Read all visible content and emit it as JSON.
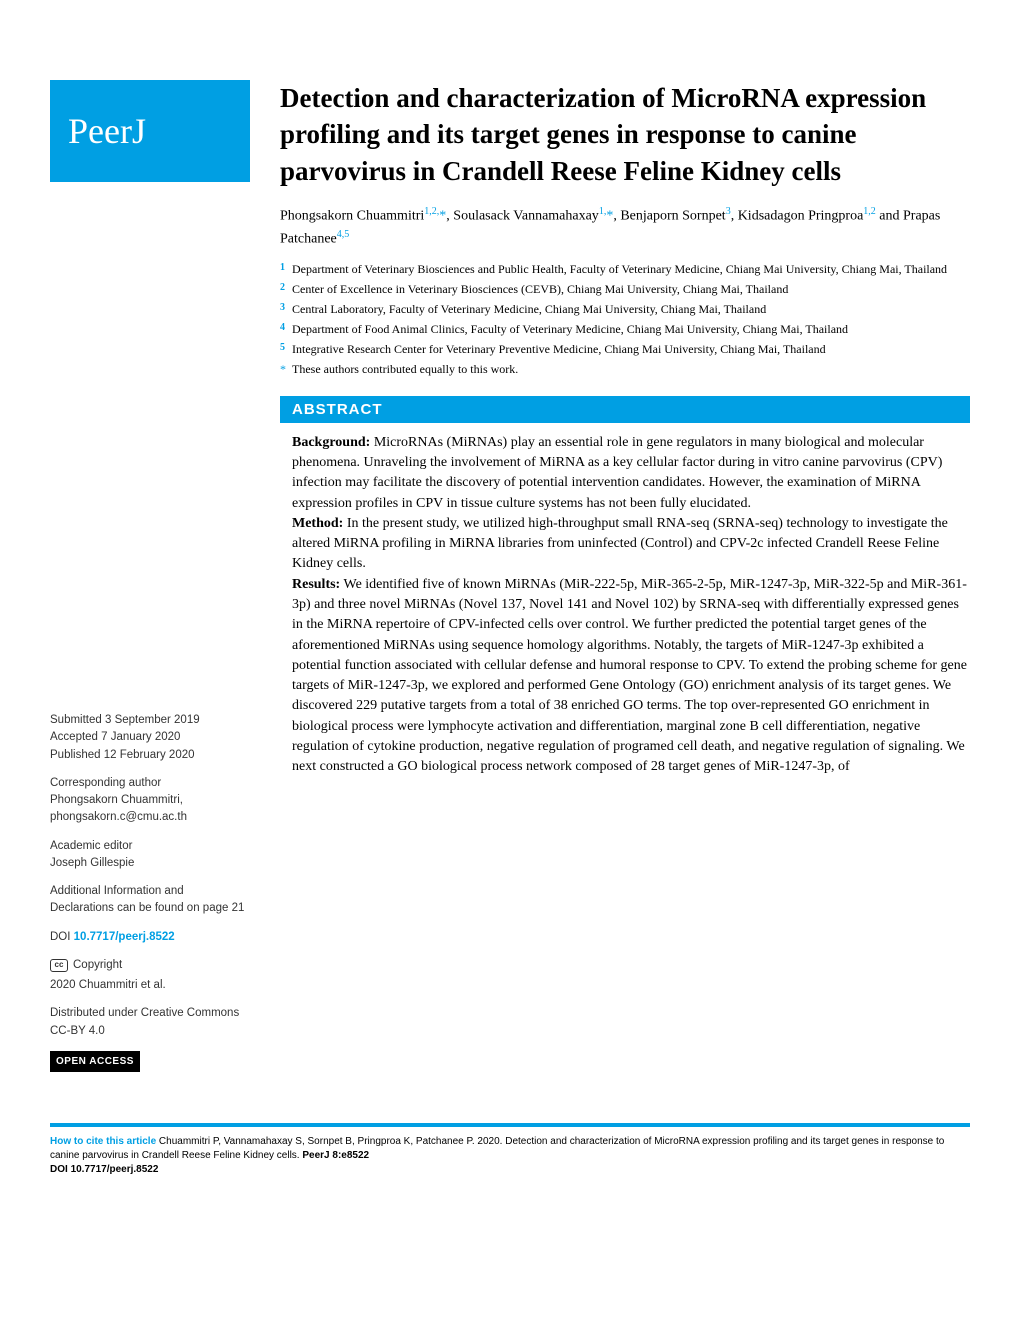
{
  "logo": "PeerJ",
  "title": "Detection and characterization of MicroRNA expression profiling and its target genes in response to canine parvovirus in Crandell Reese Feline Kidney cells",
  "authors_html": "Phongsakorn Chuammitri<sup>1,2,</sup>*, Soulasack Vannamahaxay<sup>1,</sup>*, Benjaporn Sornpet<sup>3</sup>, Kidsadagon Pringproa<sup>1,2</sup> and Prapas Patchanee<sup>4,5</sup>",
  "authors": [
    {
      "name": "Phongsakorn Chuammitri",
      "sup": "1,2,",
      "ast": true
    },
    {
      "name": ", Soulasack Vannamahaxay",
      "sup": "1,",
      "ast": true
    },
    {
      "name": ", Benjaporn Sornpet",
      "sup": "3",
      "ast": false
    },
    {
      "name": ", Kidsadagon Pringproa",
      "sup": "1,2",
      "ast": false
    },
    {
      "name": " and Prapas Patchanee",
      "sup": "4,5",
      "ast": false
    }
  ],
  "affiliations": [
    {
      "num": "1",
      "text": "Department of Veterinary Biosciences and Public Health, Faculty of Veterinary Medicine, Chiang Mai University, Chiang Mai, Thailand"
    },
    {
      "num": "2",
      "text": "Center of Excellence in Veterinary Biosciences (CEVB), Chiang Mai University, Chiang Mai, Thailand"
    },
    {
      "num": "3",
      "text": "Central Laboratory, Faculty of Veterinary Medicine, Chiang Mai University, Chiang Mai, Thailand"
    },
    {
      "num": "4",
      "text": "Department of Food Animal Clinics, Faculty of Veterinary Medicine, Chiang Mai University, Chiang Mai, Thailand"
    },
    {
      "num": "5",
      "text": "Integrative Research Center for Veterinary Preventive Medicine, Chiang Mai University, Chiang Mai, Thailand"
    }
  ],
  "equal_contrib": "These authors contributed equally to this work.",
  "abstract_header": "ABSTRACT",
  "abstract": {
    "background_label": "Background:",
    "background": " MicroRNAs (MiRNAs) play an essential role in gene regulators in many biological and molecular phenomena. Unraveling the involvement of MiRNA as a key cellular factor during in vitro canine parvovirus (CPV) infection may facilitate the discovery of potential intervention candidates. However, the examination of MiRNA expression profiles in CPV in tissue culture systems has not been fully elucidated.",
    "method_label": "Method:",
    "method": " In the present study, we utilized high-throughput small RNA-seq (SRNA-seq) technology to investigate the altered MiRNA profiling in MiRNA libraries from uninfected (Control) and CPV-2c infected Crandell Reese Feline Kidney cells.",
    "results_label": "Results:",
    "results": " We identified five of known MiRNAs (MiR-222-5p, MiR-365-2-5p, MiR-1247-3p, MiR-322-5p and MiR-361-3p) and three novel MiRNAs (Novel 137, Novel 141 and Novel 102) by SRNA-seq with differentially expressed genes in the MiRNA repertoire of CPV-infected cells over control. We further predicted the potential target genes of the aforementioned MiRNAs using sequence homology algorithms. Notably, the targets of MiR-1247-3p exhibited a potential function associated with cellular defense and humoral response to CPV. To extend the probing scheme for gene targets of MiR-1247-3p, we explored and performed Gene Ontology (GO) enrichment analysis of its target genes. We discovered 229 putative targets from a total of 38 enriched GO terms. The top over-represented GO enrichment in biological process were lymphocyte activation and differentiation, marginal zone B cell differentiation, negative regulation of cytokine production, negative regulation of programed cell death, and negative regulation of signaling. We next constructed a GO biological process network composed of 28 target genes of MiR-1247-3p, of"
  },
  "sidebar": {
    "submitted_label": "Submitted",
    "submitted": "3 September 2019",
    "accepted_label": "Accepted",
    "accepted": "7 January 2020",
    "published_label": "Published",
    "published": "12 February 2020",
    "corresponding_label": "Corresponding author",
    "corresponding_name": "Phongsakorn Chuammitri,",
    "corresponding_email": "phongsakorn.c@cmu.ac.th",
    "editor_label": "Academic editor",
    "editor": "Joseph Gillespie",
    "additional": "Additional Information and Declarations can be found on page 21",
    "doi_label": "DOI",
    "doi": "10.7717/peerj.8522",
    "copyright_label": "Copyright",
    "copyright": "2020 Chuammitri et al.",
    "distributed": "Distributed under Creative Commons CC-BY 4.0",
    "open_access": "OPEN ACCESS"
  },
  "citation": {
    "label": "How to cite this article",
    "text": " Chuammitri P, Vannamahaxay S, Sornpet B, Pringproa K, Patchanee P. 2020. Detection and characterization of MicroRNA expression profiling and its target genes in response to canine parvovirus in Crandell Reese Feline Kidney cells. ",
    "journal": "PeerJ 8:e8522",
    "doi_label": "DOI ",
    "doi": "10.7717/peerj.8522"
  },
  "colors": {
    "brand": "#009fe3",
    "text": "#000000",
    "background": "#ffffff"
  }
}
